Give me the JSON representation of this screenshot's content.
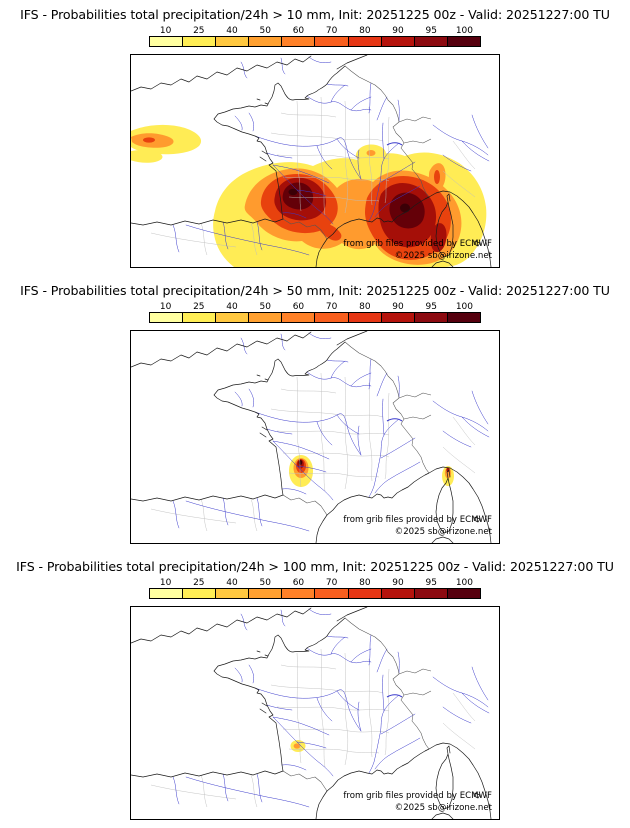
{
  "scale": {
    "labels": [
      "10",
      "25",
      "40",
      "50",
      "60",
      "70",
      "80",
      "90",
      "95",
      "100"
    ],
    "colors": [
      "#ffffa0",
      "#ffee55",
      "#ffc840",
      "#ffa030",
      "#ff8128",
      "#f95f1e",
      "#e63614",
      "#b5130c",
      "#8c0a10",
      "#56000e"
    ]
  },
  "panels": [
    {
      "title": "IFS - Probabilities total precipitation/24h > 10 mm, Init: 20251225 00z - Valid: 20251227:00 TU",
      "threshold": "> 10 mm",
      "attribution": "from grib files provided by ECMWF",
      "copyright": "©2025 sb@irizone.net"
    },
    {
      "title": "IFS - Probabilities total precipitation/24h > 50 mm, Init: 20251225 00z - Valid: 20251227:00 TU",
      "threshold": "> 50 mm",
      "attribution": "from grib files provided by ECMWF",
      "copyright": "©2025 sb@irizone.net"
    },
    {
      "title": "IFS - Probabilities total precipitation/24h > 100 mm, Init: 20251225 00z - Valid: 20251227:00 TU",
      "threshold": "> 100 mm",
      "attribution": "from grib files provided by ECMWF",
      "copyright": "©2025 sb@irizone.net"
    }
  ]
}
